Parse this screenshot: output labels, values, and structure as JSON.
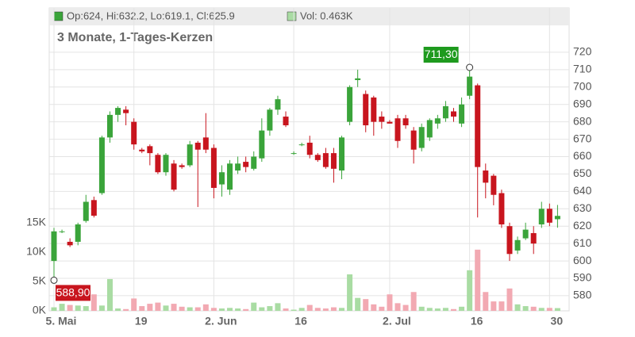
{
  "chart_data": {
    "type": "candlestick",
    "header_price": "Op:624, Hi:632.2, Lo:619.1, Cl:625.9",
    "header_volume": "Vol: 0.463K",
    "subtitle": "3 Monate, 1-Tages-Kerzen",
    "categories": [
      "5. Mai",
      null,
      null,
      null,
      null,
      null,
      null,
      null,
      null,
      null,
      "19",
      null,
      null,
      null,
      null,
      null,
      null,
      null,
      null,
      null,
      "2. Jun",
      null,
      null,
      null,
      null,
      null,
      null,
      null,
      null,
      null,
      "16",
      null,
      null,
      null,
      null,
      null,
      null,
      null,
      null,
      null,
      null,
      null,
      "2. Jul",
      null,
      null,
      null,
      null,
      null,
      null,
      null,
      null,
      null,
      "16",
      null,
      null,
      null,
      null,
      null,
      null,
      null,
      null,
      null,
      "30",
      null
    ],
    "open": [
      600,
      617,
      611,
      611,
      623,
      635,
      639,
      671,
      684,
      687,
      680,
      664,
      666,
      661,
      651,
      656,
      655,
      655,
      668,
      671,
      665,
      644,
      641,
      652,
      657,
      653,
      659,
      675,
      687,
      683,
      662,
      667,
      668,
      661,
      662,
      662,
      652,
      680,
      704,
      696,
      694,
      683,
      680,
      682,
      682,
      675,
      665,
      671,
      679,
      682,
      686,
      679,
      695,
      701,
      652,
      649,
      639,
      620,
      606,
      613,
      616,
      621,
      630,
      624
    ],
    "high": [
      619,
      618,
      613,
      622,
      638,
      637,
      672,
      686,
      689,
      689,
      682,
      665,
      667,
      662,
      662,
      658,
      656,
      669,
      669,
      685,
      667,
      655,
      658,
      660,
      660,
      663,
      682,
      688,
      695,
      686,
      663,
      668,
      672,
      662,
      665,
      665,
      672,
      701,
      710,
      698,
      695,
      686,
      681,
      684,
      684,
      677,
      679,
      682,
      684,
      692,
      688,
      694,
      711.3,
      702,
      656,
      650,
      641,
      622,
      614,
      622,
      620,
      634,
      633,
      632.2
    ],
    "low": [
      588.9,
      616,
      608,
      609,
      622,
      625,
      638,
      668,
      680,
      678,
      664,
      662,
      655,
      650,
      649,
      640,
      653,
      654,
      631,
      662,
      636,
      637,
      638,
      650,
      651,
      652,
      657,
      672,
      684,
      677,
      661,
      666,
      659,
      657,
      653,
      645,
      647,
      678,
      700,
      674,
      672,
      676,
      679,
      665,
      676,
      656,
      663,
      669,
      676,
      680,
      680,
      677,
      693,
      625,
      636,
      632,
      619,
      600,
      604,
      612,
      604,
      619,
      620,
      619.1
    ],
    "close": [
      617,
      617,
      609,
      621,
      634,
      626,
      671,
      684,
      688,
      685,
      667,
      663,
      662,
      651,
      661,
      641,
      654,
      667,
      664,
      664,
      642,
      651,
      656,
      656,
      654,
      660,
      675,
      687,
      693,
      678,
      662,
      667,
      661,
      658,
      654,
      653,
      671,
      700,
      705,
      678,
      680,
      680,
      679,
      669,
      678,
      664,
      677,
      681,
      682,
      689,
      683,
      690,
      706,
      654,
      645,
      638,
      621,
      604,
      612,
      618,
      610,
      630,
      622,
      625.9
    ],
    "volume": [
      0.6,
      1.2,
      1.0,
      0.9,
      0.8,
      2.8,
      0.9,
      5.4,
      0.4,
      0.3,
      2.1,
      0.8,
      1.2,
      1.4,
      0.9,
      1.2,
      0.7,
      0.6,
      0.6,
      1.1,
      0.5,
      0.4,
      0.5,
      0.4,
      0.3,
      1.4,
      0.6,
      0.8,
      1.3,
      0.4,
      0.2,
      0.5,
      1.0,
      0.5,
      0.4,
      0.6,
      0.5,
      6.2,
      2.2,
      2.0,
      1.1,
      0.7,
      2.8,
      1.3,
      1.0,
      3.2,
      0.7,
      0.5,
      0.4,
      0.5,
      0.3,
      0.7,
      6.9,
      10.4,
      3.2,
      1.6,
      1.6,
      3.8,
      1.1,
      0.8,
      0.7,
      0.5,
      0.5,
      0.463
    ],
    "up_color": "#3aa43a",
    "down_color": "#c8151e",
    "volume_up_color": "#a9dca3",
    "volume_down_color": "#f2a9b2",
    "high_label": {
      "value": 711.3,
      "label": "711,30"
    },
    "low_label": {
      "value": 588.9,
      "label": "588,90"
    },
    "ylim": [
      571.3,
      745.5
    ],
    "yticks": [
      580,
      590,
      600,
      610,
      620,
      630,
      640,
      650,
      660,
      670,
      680,
      690,
      700,
      710,
      720
    ],
    "y2lim": [
      0,
      51.5
    ],
    "y2ticks": [
      {
        "value": 0,
        "label": "0K"
      },
      {
        "value": 5,
        "label": "5K"
      },
      {
        "value": 10,
        "label": "10K"
      },
      {
        "value": 15,
        "label": "15K"
      }
    ],
    "grid": true
  }
}
